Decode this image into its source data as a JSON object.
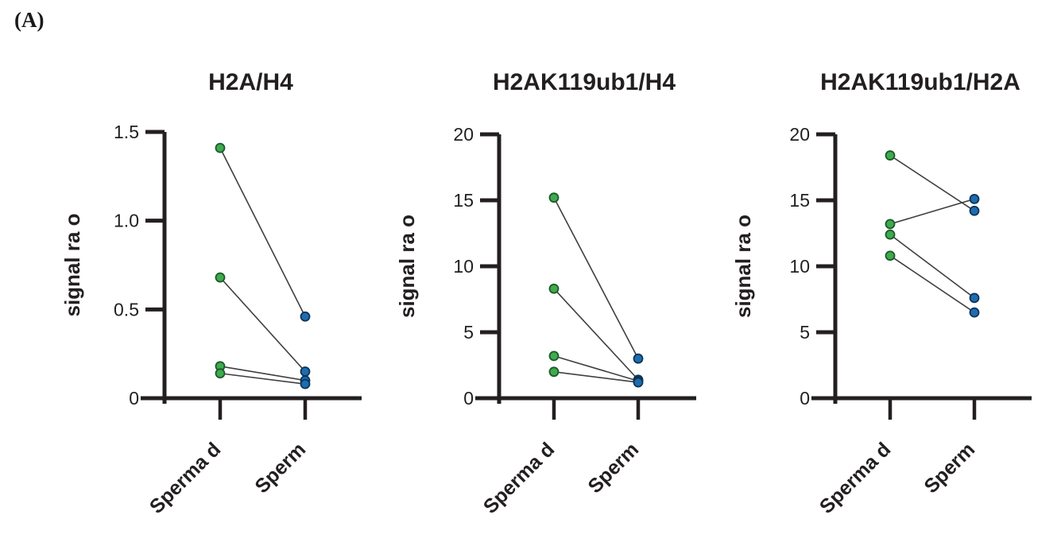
{
  "panel_label": "(A)",
  "colors": {
    "spermatid_dot_fill": "#3faa4e",
    "spermatid_dot_stroke": "#1a5a28",
    "sperm_dot_fill": "#1e6cb0",
    "sperm_dot_stroke": "#0d3356",
    "pair_line": "#3f3f3f",
    "axis": "#231f20",
    "text": "#231f20",
    "background": "#ffffff"
  },
  "chart_data": [
    {
      "type": "scatter",
      "subtype": "paired-dot-plot",
      "title": "H2A/H4",
      "xlabel": "",
      "ylabel": "signal ra o",
      "categories": [
        "Sperma d",
        "Sperm"
      ],
      "ylim": [
        0,
        1.5
      ],
      "yticks": [
        0,
        0.5,
        1.0,
        1.5
      ],
      "ytick_labels": [
        "0",
        "0.5",
        "1.0",
        "1.5"
      ],
      "grid": false,
      "legend": false,
      "pairs": [
        [
          1.41,
          0.46
        ],
        [
          0.68,
          0.15
        ],
        [
          0.18,
          0.1
        ],
        [
          0.14,
          0.08
        ]
      ]
    },
    {
      "type": "scatter",
      "subtype": "paired-dot-plot",
      "title": "H2AK119ub1/H4",
      "xlabel": "",
      "ylabel": "signal ra o",
      "categories": [
        "Sperma d",
        "Sperm"
      ],
      "ylim": [
        0,
        20
      ],
      "yticks": [
        0,
        5,
        10,
        15,
        20
      ],
      "ytick_labels": [
        "0",
        "5",
        "10",
        "15",
        "20"
      ],
      "grid": false,
      "legend": false,
      "pairs": [
        [
          15.2,
          3.0
        ],
        [
          8.3,
          1.4
        ],
        [
          3.2,
          1.3
        ],
        [
          2.0,
          1.2
        ]
      ]
    },
    {
      "type": "scatter",
      "subtype": "paired-dot-plot",
      "title": "H2AK119ub1/H2A",
      "xlabel": "",
      "ylabel": "signal ra o",
      "categories": [
        "Sperma d",
        "Sperm"
      ],
      "ylim": [
        0,
        20
      ],
      "yticks": [
        0,
        5,
        10,
        15,
        20
      ],
      "ytick_labels": [
        "0",
        "5",
        "10",
        "15",
        "20"
      ],
      "grid": false,
      "legend": false,
      "pairs": [
        [
          18.4,
          14.2
        ],
        [
          13.2,
          15.1
        ],
        [
          12.4,
          7.6
        ],
        [
          10.8,
          6.5
        ]
      ]
    }
  ]
}
